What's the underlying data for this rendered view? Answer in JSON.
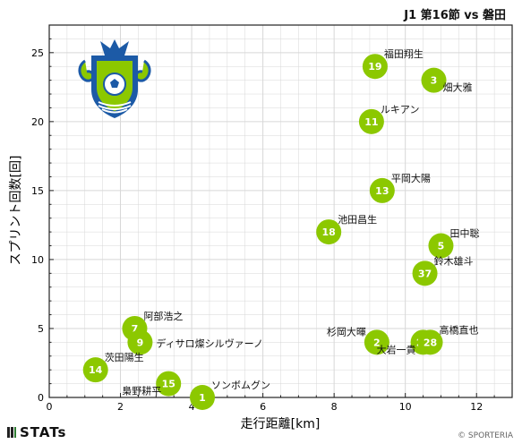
{
  "header": {
    "title": "J1 第16節 vs 磐田"
  },
  "footer": {
    "brand": "STATs",
    "copyright": "© SPORTERIA"
  },
  "colors": {
    "bubble": "#8cc800",
    "grid": "#d7d7d7",
    "axis": "#222222"
  },
  "logo": {
    "name": "shonan-bellmare-crest",
    "colors": [
      "#8cc800",
      "#1c5aa6",
      "#ffffff"
    ]
  },
  "chart_data": {
    "type": "scatter",
    "title": "",
    "xlabel": "走行距離[km]",
    "ylabel": "スプリント回数[回]",
    "xlim": [
      0,
      13
    ],
    "ylim": [
      0,
      27
    ],
    "xticks": [
      0,
      2,
      4,
      6,
      8,
      10,
      12
    ],
    "yticks": [
      0,
      5,
      10,
      15,
      20,
      25
    ],
    "grid": true,
    "points": [
      {
        "number": "19",
        "name": "福田翔生",
        "x": 9.15,
        "y": 24,
        "label_pos": "upper-right"
      },
      {
        "number": "3",
        "name": "畑大雅",
        "x": 10.8,
        "y": 23,
        "label_pos": "lower-right"
      },
      {
        "number": "11",
        "name": "ルキアン",
        "x": 9.05,
        "y": 20,
        "label_pos": "upper-right"
      },
      {
        "number": "13",
        "name": "平岡大陽",
        "x": 9.35,
        "y": 15,
        "label_pos": "upper-right"
      },
      {
        "number": "18",
        "name": "池田昌生",
        "x": 7.85,
        "y": 12,
        "label_pos": "upper-right"
      },
      {
        "number": "5",
        "name": "田中聡",
        "x": 11.0,
        "y": 11,
        "label_pos": "upper-right"
      },
      {
        "number": "37",
        "name": "鈴木雄斗",
        "x": 10.55,
        "y": 9,
        "label_pos": "upper-right"
      },
      {
        "number": "7",
        "name": "阿部浩之",
        "x": 2.4,
        "y": 5,
        "label_pos": "upper-right"
      },
      {
        "number": "9",
        "name": "ディサロ燦シルヴァーノ",
        "x": 2.55,
        "y": 4,
        "label_pos": "right"
      },
      {
        "number": "2",
        "name": "杉岡大暉",
        "x": 9.2,
        "y": 4,
        "label_pos": "upper-left"
      },
      {
        "number": "22",
        "name": "大岩一貴",
        "x": 10.5,
        "y": 4,
        "label_pos": "lower-left"
      },
      {
        "number": "28",
        "name": "高橋直也",
        "x": 10.7,
        "y": 4,
        "label_pos": "upper-right"
      },
      {
        "number": "14",
        "name": "茨田陽生",
        "x": 1.3,
        "y": 2,
        "label_pos": "upper-right"
      },
      {
        "number": "15",
        "name": "梟野耕平",
        "x": 3.35,
        "y": 1,
        "label_pos": "lower-left"
      },
      {
        "number": "1",
        "name": "ソンボムグン",
        "x": 4.3,
        "y": 0,
        "label_pos": "upper-right"
      }
    ]
  }
}
